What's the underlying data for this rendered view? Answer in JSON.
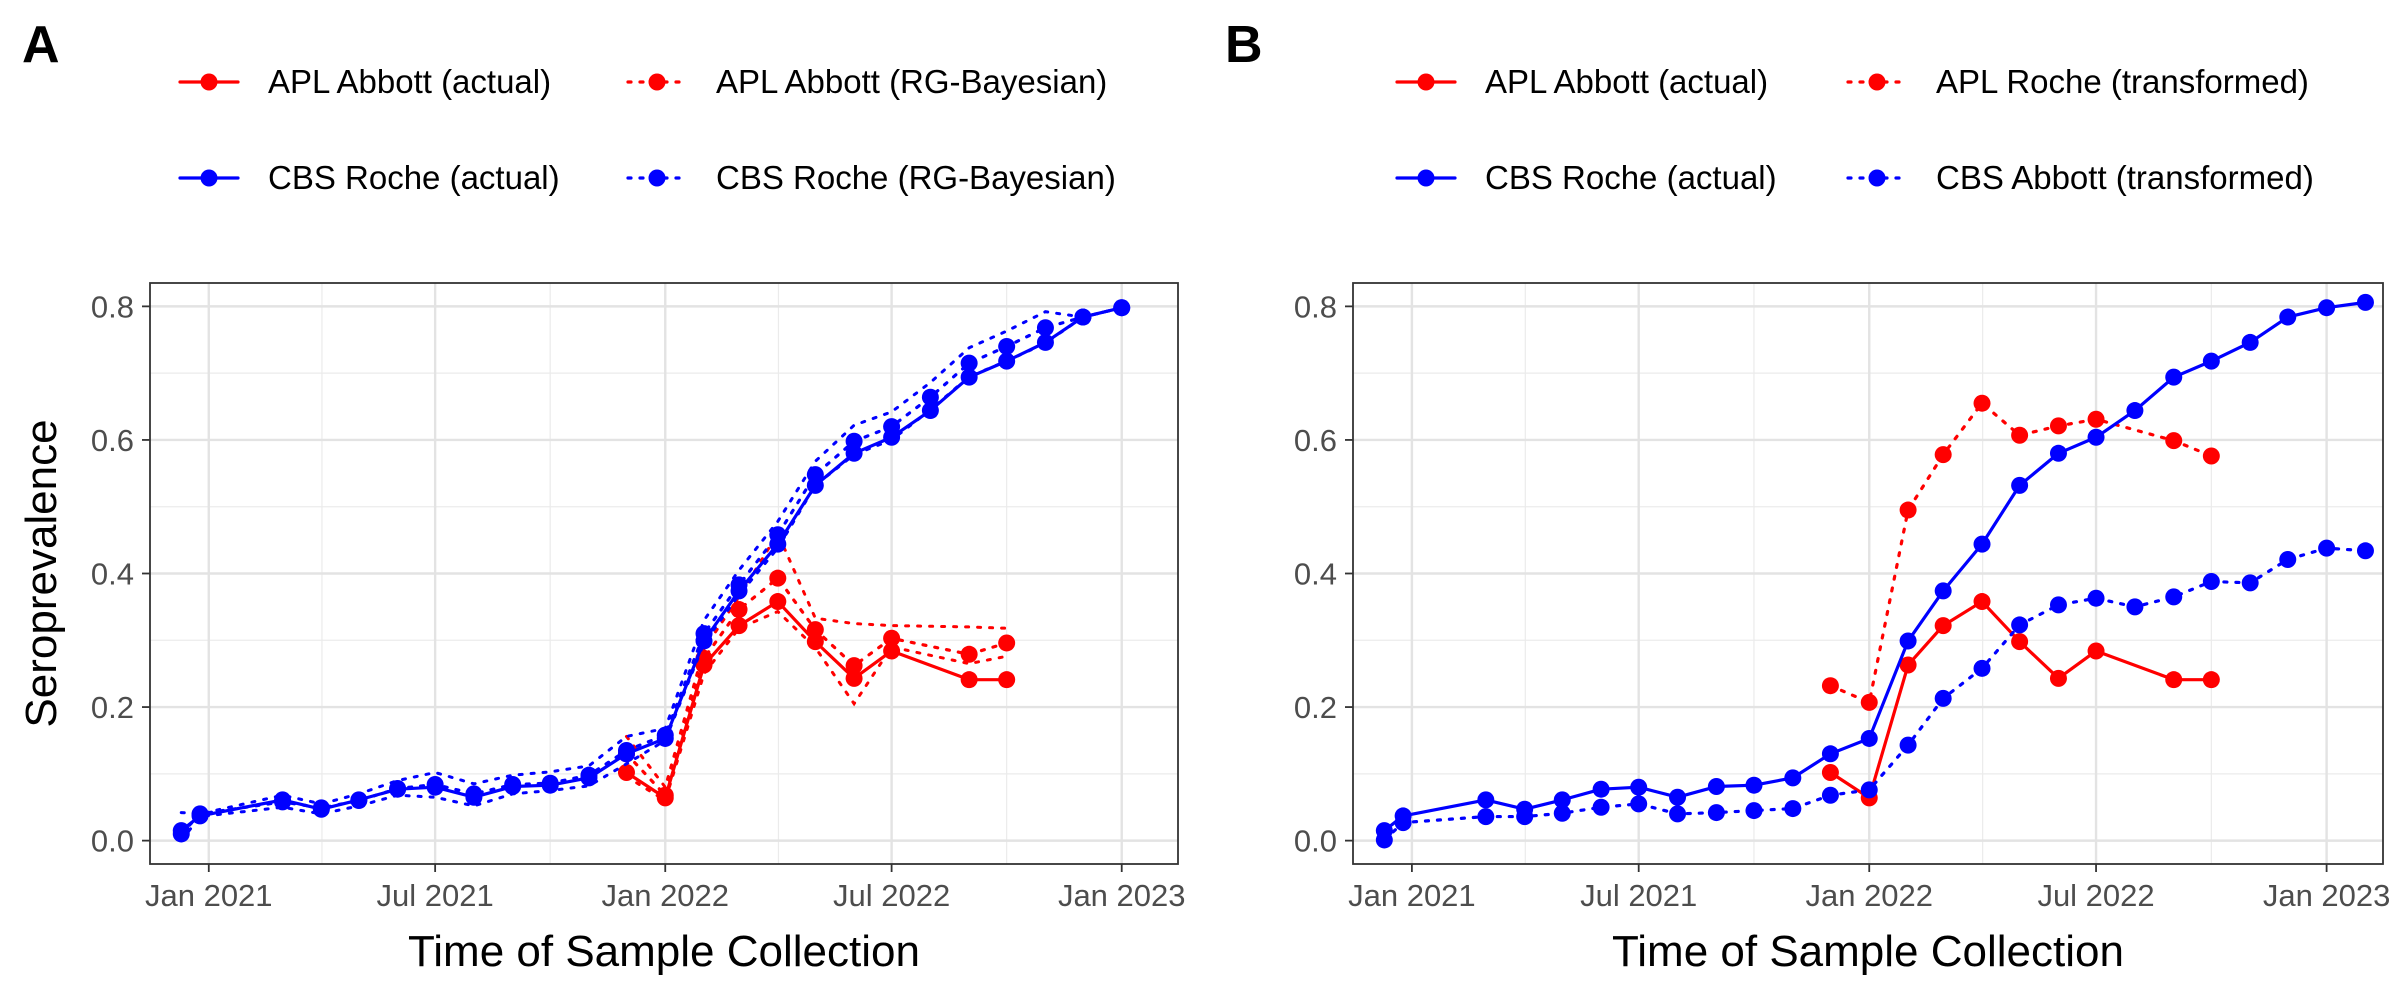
{
  "chart_data": [
    {
      "panel_label": "A",
      "type": "line",
      "xlabel": "Time of Sample Collection",
      "ylabel": "Seroprevalence",
      "x_ticks": [
        "Jan 2021",
        "Jul 2021",
        "Jan 2022",
        "Jul 2022",
        "Jan 2023"
      ],
      "y_ticks": [
        "0.0",
        "0.2",
        "0.4",
        "0.6",
        "0.8"
      ],
      "xlim": [
        "2020-11-15",
        "2023-02-15"
      ],
      "ylim": [
        -0.035,
        0.835
      ],
      "legend_position": "top",
      "grid": true,
      "series": [
        {
          "name": "APL Abbott (actual)",
          "color": "#ff0000",
          "linestyle": "solid",
          "x": [
            "2021-12-01",
            "2022-01-01",
            "2022-02-01",
            "2022-03-01",
            "2022-04-01",
            "2022-05-01",
            "2022-06-01",
            "2022-07-01",
            "2022-09-01",
            "2022-10-01"
          ],
          "y": [
            0.102,
            0.064,
            0.263,
            0.322,
            0.358,
            0.298,
            0.243,
            0.284,
            0.241,
            0.241
          ]
        },
        {
          "name": "APL Abbott (RG-Bayesian)",
          "color": "#ff0000",
          "linestyle": "dotted",
          "x": [
            "2021-12-01",
            "2022-01-01",
            "2022-02-01",
            "2022-03-01",
            "2022-04-01",
            "2022-05-01",
            "2022-06-01",
            "2022-07-01",
            "2022-09-01",
            "2022-10-01"
          ],
          "y": [
            0.13,
            0.068,
            0.273,
            0.346,
            0.393,
            0.316,
            0.262,
            0.303,
            0.279,
            0.296
          ],
          "lower": [
            0.096,
            0.06,
            0.25,
            0.318,
            0.343,
            0.289,
            0.205,
            0.29,
            0.265,
            0.276
          ],
          "upper": [
            0.156,
            0.08,
            0.287,
            0.365,
            0.46,
            0.333,
            0.325,
            0.322,
            0.32,
            0.318
          ]
        },
        {
          "name": "CBS Roche (actual)",
          "color": "#0000ff",
          "linestyle": "solid",
          "x": [
            "2020-12-10",
            "2020-12-25",
            "2021-03-01",
            "2021-04-01",
            "2021-05-01",
            "2021-06-01",
            "2021-07-01",
            "2021-08-01",
            "2021-09-01",
            "2021-10-01",
            "2021-11-01",
            "2021-12-01",
            "2022-01-01",
            "2022-02-01",
            "2022-03-01",
            "2022-04-01",
            "2022-05-01",
            "2022-06-01",
            "2022-07-01",
            "2022-08-01",
            "2022-09-01",
            "2022-10-01",
            "2022-11-01",
            "2022-12-01",
            "2023-01-01"
          ],
          "y": [
            0.015,
            0.037,
            0.061,
            0.047,
            0.061,
            0.077,
            0.08,
            0.065,
            0.081,
            0.083,
            0.094,
            0.13,
            0.153,
            0.299,
            0.374,
            0.444,
            0.532,
            0.58,
            0.604,
            0.644,
            0.694,
            0.718,
            0.746,
            0.784,
            0.798
          ]
        },
        {
          "name": "CBS Roche (RG-Bayesian)",
          "color": "#0000ff",
          "linestyle": "dotted",
          "x": [
            "2020-12-10",
            "2020-12-25",
            "2021-03-01",
            "2021-04-01",
            "2021-05-01",
            "2021-06-01",
            "2021-07-01",
            "2021-08-01",
            "2021-09-01",
            "2021-10-01",
            "2021-11-01",
            "2021-12-01",
            "2022-01-01",
            "2022-02-01",
            "2022-03-01",
            "2022-04-01",
            "2022-05-01",
            "2022-06-01",
            "2022-07-01",
            "2022-08-01",
            "2022-09-01",
            "2022-10-01",
            "2022-11-01",
            "2022-12-01",
            "2023-01-01"
          ],
          "y": [
            0.01,
            0.04,
            0.058,
            0.049,
            0.06,
            0.078,
            0.084,
            0.07,
            0.084,
            0.086,
            0.098,
            0.135,
            0.158,
            0.31,
            0.383,
            0.458,
            0.548,
            0.598,
            0.62,
            0.664,
            0.715,
            0.74,
            0.768,
            0.784,
            0.798
          ],
          "lower": [
            0.0,
            0.036,
            0.05,
            0.04,
            0.052,
            0.068,
            0.065,
            0.052,
            0.07,
            0.075,
            0.082,
            0.115,
            0.15,
            0.296,
            0.368,
            0.438,
            0.532,
            0.578,
            0.6,
            0.645,
            0.695,
            0.718,
            0.745,
            0.784,
            0.798
          ],
          "upper": [
            0.042,
            0.04,
            0.068,
            0.055,
            0.07,
            0.09,
            0.102,
            0.085,
            0.098,
            0.103,
            0.112,
            0.156,
            0.168,
            0.33,
            0.405,
            0.478,
            0.568,
            0.622,
            0.642,
            0.686,
            0.738,
            0.763,
            0.792,
            0.784,
            0.798
          ]
        }
      ]
    },
    {
      "panel_label": "B",
      "type": "line",
      "xlabel": "Time of Sample Collection",
      "ylabel": "",
      "x_ticks": [
        "Jan 2021",
        "Jul 2021",
        "Jan 2022",
        "Jul 2022",
        "Jan 2023"
      ],
      "y_ticks": [
        "0.0",
        "0.2",
        "0.4",
        "0.6",
        "0.8"
      ],
      "xlim": [
        "2020-11-15",
        "2023-02-15"
      ],
      "ylim": [
        -0.035,
        0.835
      ],
      "legend_position": "top",
      "grid": true,
      "series": [
        {
          "name": "APL Abbott (actual)",
          "color": "#ff0000",
          "linestyle": "solid",
          "x": [
            "2021-12-01",
            "2022-01-01",
            "2022-02-01",
            "2022-03-01",
            "2022-04-01",
            "2022-05-01",
            "2022-06-01",
            "2022-07-01",
            "2022-09-01",
            "2022-10-01"
          ],
          "y": [
            0.102,
            0.064,
            0.263,
            0.322,
            0.358,
            0.298,
            0.243,
            0.284,
            0.241,
            0.241
          ]
        },
        {
          "name": "APL Roche (transformed)",
          "color": "#ff0000",
          "linestyle": "dotted",
          "x": [
            "2021-12-01",
            "2022-01-01",
            "2022-02-01",
            "2022-03-01",
            "2022-04-01",
            "2022-05-01",
            "2022-06-01",
            "2022-07-01",
            "2022-09-01",
            "2022-10-01"
          ],
          "y": [
            0.232,
            0.207,
            0.495,
            0.578,
            0.655,
            0.607,
            0.621,
            0.631,
            0.599,
            0.576
          ]
        },
        {
          "name": "CBS Roche (actual)",
          "color": "#0000ff",
          "linestyle": "solid",
          "x": [
            "2020-12-10",
            "2020-12-25",
            "2021-03-01",
            "2021-04-01",
            "2021-05-01",
            "2021-06-01",
            "2021-07-01",
            "2021-08-01",
            "2021-09-01",
            "2021-10-01",
            "2021-11-01",
            "2021-12-01",
            "2022-01-01",
            "2022-02-01",
            "2022-03-01",
            "2022-04-01",
            "2022-05-01",
            "2022-06-01",
            "2022-07-01",
            "2022-08-01",
            "2022-09-01",
            "2022-10-01",
            "2022-11-01",
            "2022-12-01",
            "2023-01-01",
            "2023-02-01"
          ],
          "y": [
            0.015,
            0.037,
            0.061,
            0.047,
            0.061,
            0.077,
            0.08,
            0.065,
            0.081,
            0.083,
            0.094,
            0.13,
            0.153,
            0.299,
            0.374,
            0.444,
            0.532,
            0.58,
            0.604,
            0.644,
            0.694,
            0.718,
            0.746,
            0.784,
            0.798,
            0.806
          ]
        },
        {
          "name": "CBS Abbott (transformed)",
          "color": "#0000ff",
          "linestyle": "dotted",
          "x": [
            "2020-12-10",
            "2020-12-25",
            "2021-03-01",
            "2021-04-01",
            "2021-05-01",
            "2021-06-01",
            "2021-07-01",
            "2021-08-01",
            "2021-09-01",
            "2021-10-01",
            "2021-11-01",
            "2021-12-01",
            "2022-01-01",
            "2022-02-01",
            "2022-03-01",
            "2022-04-01",
            "2022-05-01",
            "2022-06-01",
            "2022-07-01",
            "2022-08-01",
            "2022-09-01",
            "2022-10-01",
            "2022-11-01",
            "2022-12-01",
            "2023-01-01",
            "2023-02-01"
          ],
          "y": [
            0.001,
            0.027,
            0.036,
            0.036,
            0.041,
            0.05,
            0.055,
            0.04,
            0.042,
            0.045,
            0.048,
            0.068,
            0.076,
            0.143,
            0.213,
            0.258,
            0.323,
            0.353,
            0.363,
            0.35,
            0.365,
            0.388,
            0.386,
            0.421,
            0.438,
            0.434
          ]
        }
      ]
    }
  ]
}
